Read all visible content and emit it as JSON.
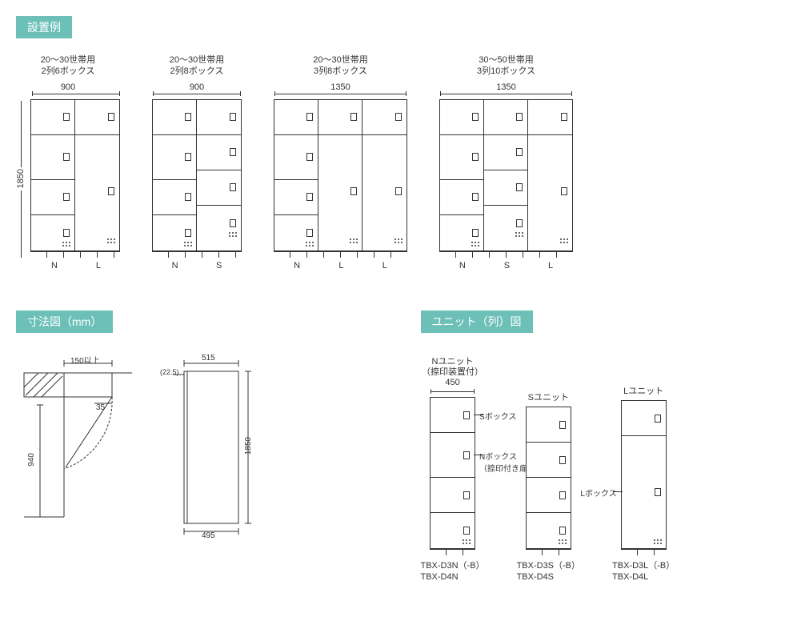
{
  "colors": {
    "header_bg": "#6cc0b8",
    "header_fg": "#ffffff",
    "line": "#333333"
  },
  "section1_title": "設置例",
  "section2_title": "寸法図（mm）",
  "section3_title": "ユニット（列）図",
  "lockers": [
    {
      "caption_l1": "20～30世帯用",
      "caption_l2": "2列6ボックス",
      "width": "900",
      "height": "1850",
      "show_height": true,
      "columns": [
        {
          "label": "N",
          "boxes": [
            "S",
            "N",
            "S",
            "S"
          ],
          "w": 55
        },
        {
          "label": "L",
          "boxes": [
            "S",
            "L"
          ],
          "w": 55
        }
      ]
    },
    {
      "caption_l1": "20～30世帯用",
      "caption_l2": "2列8ボックス",
      "width": "900",
      "columns": [
        {
          "label": "N",
          "boxes": [
            "S",
            "N",
            "S",
            "S"
          ],
          "w": 55
        },
        {
          "label": "S",
          "boxes": [
            "S",
            "S",
            "S",
            "S"
          ],
          "w": 55
        }
      ]
    },
    {
      "caption_l1": "20～30世帯用",
      "caption_l2": "3列8ボックス",
      "width": "1350",
      "columns": [
        {
          "label": "N",
          "boxes": [
            "S",
            "N",
            "S",
            "S"
          ],
          "w": 55
        },
        {
          "label": "L",
          "boxes": [
            "S",
            "L"
          ],
          "w": 55
        },
        {
          "label": "L",
          "boxes": [
            "S",
            "L"
          ],
          "w": 55
        }
      ]
    },
    {
      "caption_l1": "30～50世帯用",
      "caption_l2": "3列10ボックス",
      "width": "1350",
      "columns": [
        {
          "label": "N",
          "boxes": [
            "S",
            "N",
            "S",
            "S"
          ],
          "w": 55
        },
        {
          "label": "S",
          "boxes": [
            "S",
            "S",
            "S",
            "S"
          ],
          "w": 55
        },
        {
          "label": "L",
          "boxes": [
            "S",
            "L"
          ],
          "w": 55
        }
      ]
    }
  ],
  "box_heights": {
    "S": 44,
    "N": 56,
    "L": 140
  },
  "dim_drawing": {
    "labels": {
      "d150": "150以上",
      "d940": "940",
      "d35": "35",
      "d515": "515",
      "d225": "(22.5)",
      "d495": "495",
      "d1850": "1850"
    }
  },
  "units": [
    {
      "top_l1": "Nユニット",
      "top_l2": "（捺印装置付）",
      "width_label": "450",
      "boxes": [
        "S",
        "N",
        "S",
        "S"
      ],
      "annots": [
        {
          "text": "Sボックス",
          "box_index": 0
        },
        {
          "text": "Nボックス",
          "text2": "（捺印付き扉）",
          "box_index": 1
        }
      ],
      "model_l1": "TBX-D3N（-B）",
      "model_l2": "TBX-D4N"
    },
    {
      "top_l1": "Sユニット",
      "boxes": [
        "S",
        "S",
        "S",
        "S"
      ],
      "model_l1": "TBX-D3S（-B）",
      "model_l2": "TBX-D4S"
    },
    {
      "top_l1": "Lユニット",
      "boxes": [
        "S",
        "L"
      ],
      "annots": [
        {
          "text": "Lボックス",
          "box_index": 1,
          "side": "left"
        }
      ],
      "model_l1": "TBX-D3L（-B）",
      "model_l2": "TBX-D4L"
    }
  ]
}
